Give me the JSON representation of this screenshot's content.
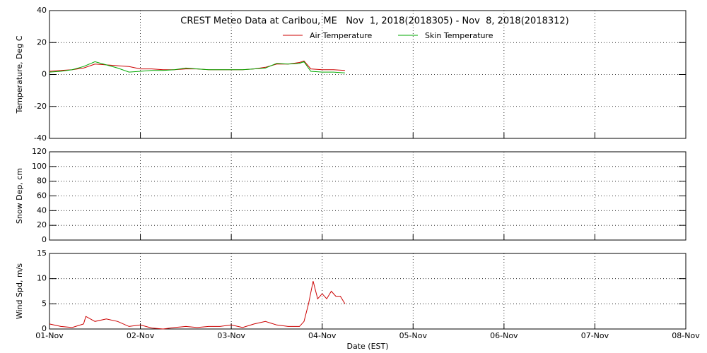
{
  "chart_data": [
    {
      "type": "line",
      "title": "CREST Meteo Data at Caribou, ME   Nov  1, 2018(2018305) - Nov  8, 2018(2018312)",
      "ylabel": "Temperature, Deg C",
      "xlim": [
        0,
        7
      ],
      "xticks": [
        0,
        1,
        2,
        3,
        4,
        5,
        6,
        7
      ],
      "ylim": [
        -40,
        40
      ],
      "yticks": [
        -40,
        -20,
        0,
        20,
        40
      ],
      "grid": true,
      "x": [
        0,
        0.125,
        0.25,
        0.375,
        0.5,
        0.625,
        0.75,
        0.875,
        1.0,
        1.125,
        1.25,
        1.375,
        1.5,
        1.625,
        1.75,
        1.875,
        2.0,
        2.125,
        2.25,
        2.375,
        2.5,
        2.625,
        2.75,
        2.8,
        2.875,
        3.0,
        3.125,
        3.25
      ],
      "series": [
        {
          "name": "Air Temperature",
          "color": "#cc0000",
          "values": [
            2,
            2.5,
            3,
            4,
            6.5,
            6,
            5.5,
            5,
            3.5,
            3.5,
            3,
            3,
            3.5,
            3.5,
            3,
            3,
            3,
            3,
            3.5,
            4.5,
            6.5,
            6.5,
            7.5,
            8.5,
            3.5,
            3,
            3,
            2.5
          ]
        },
        {
          "name": "Skin Temperature",
          "color": "#00aa00",
          "values": [
            1.5,
            2,
            3,
            5,
            8,
            6,
            4,
            1.5,
            2,
            2.5,
            2.5,
            3,
            4,
            3.5,
            3,
            3,
            3,
            3,
            3.5,
            4,
            7,
            6.5,
            7,
            8,
            2,
            1.5,
            1.5,
            1
          ]
        }
      ]
    },
    {
      "type": "line",
      "ylabel": "Snow Dep, cm",
      "xlim": [
        0,
        7
      ],
      "xticks": [
        0,
        1,
        2,
        3,
        4,
        5,
        6,
        7
      ],
      "ylim": [
        0,
        120
      ],
      "yticks": [
        0,
        20,
        40,
        60,
        80,
        100,
        120
      ],
      "grid": true,
      "x": [],
      "series": []
    },
    {
      "type": "line",
      "ylabel": "Wind Spd, m/s",
      "xlabel": "Date (EST)",
      "xlim": [
        0,
        7
      ],
      "xticks": [
        {
          "value": 0,
          "label": "01-Nov"
        },
        {
          "value": 1,
          "label": "02-Nov"
        },
        {
          "value": 2,
          "label": "03-Nov"
        },
        {
          "value": 3,
          "label": "04-Nov"
        },
        {
          "value": 4,
          "label": "05-Nov"
        },
        {
          "value": 5,
          "label": "06-Nov"
        },
        {
          "value": 6,
          "label": "07-Nov"
        },
        {
          "value": 7,
          "label": "08-Nov"
        }
      ],
      "ylim": [
        0,
        15
      ],
      "yticks": [
        0,
        5,
        10,
        15
      ],
      "grid": true,
      "x": [
        0,
        0.125,
        0.25,
        0.375,
        0.4,
        0.5,
        0.625,
        0.75,
        0.875,
        1.0,
        1.125,
        1.25,
        1.375,
        1.5,
        1.625,
        1.75,
        1.875,
        2.0,
        2.125,
        2.25,
        2.375,
        2.5,
        2.625,
        2.75,
        2.8,
        2.85,
        2.9,
        2.95,
        3.0,
        3.05,
        3.1,
        3.15,
        3.2,
        3.25
      ],
      "series": [
        {
          "name": "Wind Speed",
          "color": "#cc0000",
          "values": [
            1,
            0.5,
            0.3,
            1,
            2.5,
            1.5,
            2,
            1.5,
            0.5,
            0.8,
            0.2,
            0,
            0.3,
            0.5,
            0.3,
            0.5,
            0.5,
            0.8,
            0.3,
            1,
            1.5,
            0.8,
            0.5,
            0.5,
            1.5,
            5,
            9.5,
            6,
            7,
            6,
            7.5,
            6.5,
            6.5,
            5
          ]
        }
      ]
    }
  ]
}
